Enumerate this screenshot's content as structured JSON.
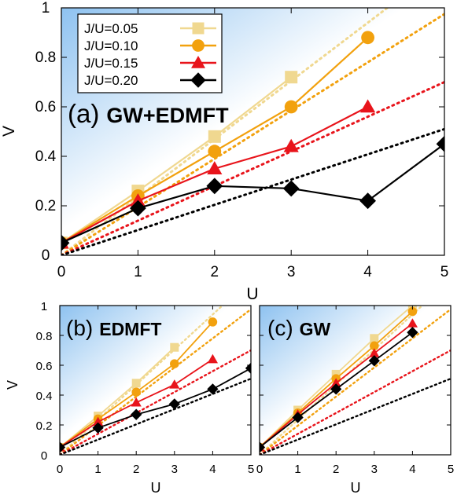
{
  "figure": {
    "series_styles": [
      {
        "name": "J/U=0.05",
        "color": "#f0d890",
        "marker": "square"
      },
      {
        "name": "J/U=0.10",
        "color": "#f2a10e",
        "marker": "circle"
      },
      {
        "name": "J/U=0.15",
        "color": "#e8141b",
        "marker": "triangle"
      },
      {
        "name": "J/U=0.20",
        "color": "#000000",
        "marker": "diamond"
      }
    ]
  },
  "chart_data": [
    {
      "type": "line",
      "panel": "(a)",
      "title_prefix": "(a)",
      "title_bold": "GW+EDMFT",
      "xlabel": "U",
      "ylabel": "V",
      "xlim": [
        0,
        5
      ],
      "ylim": [
        0,
        1
      ],
      "xticks": [
        "0",
        "1",
        "2",
        "3",
        "4",
        "5"
      ],
      "yticks": [
        "0",
        "0.2",
        "0.4",
        "0.6",
        "0.8",
        "1"
      ],
      "legend": "top-left",
      "series": [
        {
          "name": "J/U=0.05",
          "x": [
            0,
            1,
            2,
            3
          ],
          "y": [
            0.05,
            0.26,
            0.48,
            0.72
          ]
        },
        {
          "name": "J/U=0.10",
          "x": [
            0,
            1,
            2,
            3,
            4
          ],
          "y": [
            0.05,
            0.24,
            0.42,
            0.6,
            0.88
          ]
        },
        {
          "name": "J/U=0.15",
          "x": [
            0,
            1,
            2,
            3,
            4
          ],
          "y": [
            0.05,
            0.22,
            0.35,
            0.44,
            0.6
          ]
        },
        {
          "name": "J/U=0.20",
          "x": [
            0,
            1,
            2,
            3,
            4,
            5
          ],
          "y": [
            0.05,
            0.19,
            0.28,
            0.27,
            0.22,
            0.45
          ]
        }
      ],
      "reference_lines_slope": [
        0.235,
        0.195,
        0.14,
        0.102
      ]
    },
    {
      "type": "line",
      "panel": "(b)",
      "title_prefix": "(b)",
      "title_bold": "EDMFT",
      "xlabel": "U",
      "ylabel": "V",
      "xlim": [
        0,
        5
      ],
      "ylim": [
        0,
        1
      ],
      "xticks": [
        "0",
        "1",
        "2",
        "3",
        "4",
        "5"
      ],
      "yticks": [
        "0",
        "0.2",
        "0.4",
        "0.6",
        "0.8",
        "1"
      ],
      "series": [
        {
          "name": "J/U=0.05",
          "x": [
            0,
            1,
            2,
            3
          ],
          "y": [
            0.05,
            0.26,
            0.48,
            0.72
          ]
        },
        {
          "name": "J/U=0.10",
          "x": [
            0,
            1,
            2,
            3,
            4
          ],
          "y": [
            0.05,
            0.24,
            0.42,
            0.61,
            0.89
          ]
        },
        {
          "name": "J/U=0.15",
          "x": [
            0,
            1,
            2,
            3,
            4
          ],
          "y": [
            0.05,
            0.22,
            0.35,
            0.47,
            0.64
          ]
        },
        {
          "name": "J/U=0.20",
          "x": [
            0,
            1,
            2,
            3,
            4,
            5
          ],
          "y": [
            0.05,
            0.18,
            0.27,
            0.34,
            0.44,
            0.58
          ]
        }
      ],
      "reference_lines_slope": [
        0.235,
        0.195,
        0.14,
        0.102
      ]
    },
    {
      "type": "line",
      "panel": "(c)",
      "title_prefix": "(c)",
      "title_bold": "GW",
      "xlabel": "U",
      "ylabel": "",
      "xlim": [
        0,
        5
      ],
      "ylim": [
        0,
        1
      ],
      "xticks": [
        "0",
        "1",
        "2",
        "3",
        "4",
        "5"
      ],
      "yticks": [],
      "series": [
        {
          "name": "J/U=0.05",
          "x": [
            0,
            1,
            2,
            3,
            4
          ],
          "y": [
            0.05,
            0.3,
            0.54,
            0.78,
            1.0
          ]
        },
        {
          "name": "J/U=0.10",
          "x": [
            0,
            1,
            2,
            3,
            4
          ],
          "y": [
            0.05,
            0.28,
            0.51,
            0.73,
            0.96
          ]
        },
        {
          "name": "J/U=0.15",
          "x": [
            0,
            1,
            2,
            3,
            4
          ],
          "y": [
            0.05,
            0.27,
            0.48,
            0.68,
            0.88
          ]
        },
        {
          "name": "J/U=0.20",
          "x": [
            0,
            1,
            2,
            3,
            4
          ],
          "y": [
            0.05,
            0.25,
            0.44,
            0.63,
            0.82
          ]
        }
      ],
      "reference_lines_slope": [
        0.235,
        0.195,
        0.14,
        0.102
      ]
    }
  ]
}
